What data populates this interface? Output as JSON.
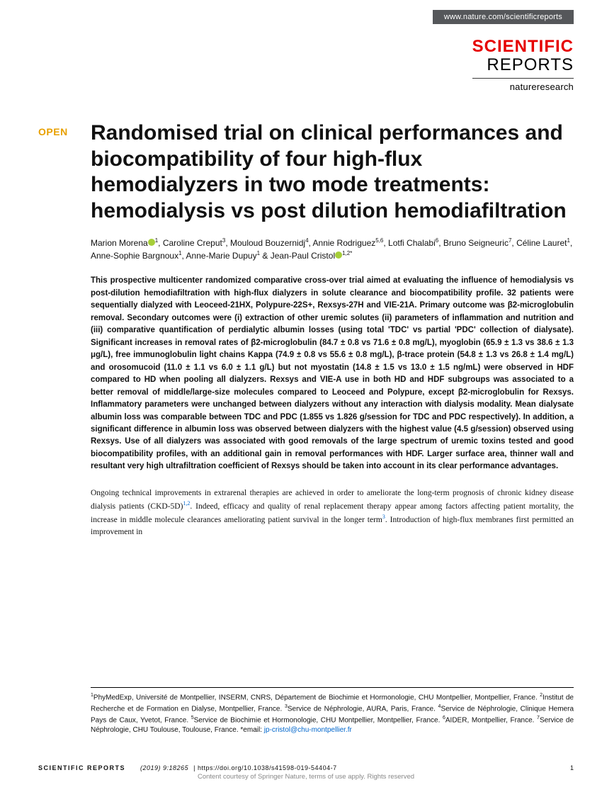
{
  "header": {
    "url": "www.nature.com/scientificreports"
  },
  "brand": {
    "top": "SCIENTIFIC",
    "bottom": "REPORTS",
    "sub": "natureresearch"
  },
  "open_label": "OPEN",
  "title": "Randomised trial on clinical performances and biocompatibility of four high-flux hemodialyzers in two mode treatments: hemodialysis vs post dilution hemodiafiltration",
  "authors_html": "Marion Morena<span class=\"orcid\"></span><sup>1</sup>, Caroline Creput<sup>3</sup>, Mouloud Bouzernidj<sup>4</sup>, Annie Rodriguez<sup>5,6</sup>, Lotfi Chalabi<sup>6</sup>, Bruno Seigneuric<sup>7</sup>, Céline Lauret<sup>1</sup>, Anne-Sophie Bargnoux<sup>1</sup>, Anne-Marie Dupuy<sup>1</sup> & Jean-Paul Cristol<span class=\"orcid\"></span><sup>1,2*</sup>",
  "abstract": "This prospective multicenter randomized comparative cross-over trial aimed at evaluating the influence of hemodialysis vs post-dilution hemodiafiltration with high-flux dialyzers in solute clearance and biocompatibility profile. 32 patients were sequentially dialyzed with Leoceed-21HX, Polypure-22S+, Rexsys-27H and VIE-21A. Primary outcome was β2-microglobulin removal. Secondary outcomes were (i) extraction of other uremic solutes (ii) parameters of inflammation and nutrition and (iii) comparative quantification of perdialytic albumin losses (using total 'TDC' vs partial 'PDC' collection of dialysate). Significant increases in removal rates of β2-microglobulin (84.7 ± 0.8 vs 71.6 ± 0.8 mg/L), myoglobin (65.9 ± 1.3 vs 38.6 ± 1.3 μg/L), free immunoglobulin light chains Kappa (74.9 ± 0.8 vs 55.6 ± 0.8 mg/L), β-trace protein (54.8 ± 1.3 vs 26.8 ± 1.4 mg/L) and orosomucoid (11.0 ± 1.1 vs 6.0 ± 1.1 g/L) but not myostatin (14.8 ± 1.5 vs 13.0 ± 1.5 ng/mL) were observed in HDF compared to HD when pooling all dialyzers. Rexsys and VIE-A use in both HD and HDF subgroups was associated to a better removal of middle/large-size molecules compared to Leoceed and Polypure, except β2-microglobulin for Rexsys. Inflammatory parameters were unchanged between dialyzers without any interaction with dialysis modality. Mean dialysate albumin loss was comparable between TDC and PDC (1.855 vs 1.826 g/session for TDC and PDC respectively). In addition, a significant difference in albumin loss was observed between dialyzers with the highest value (4.5 g/session) observed using Rexsys. Use of all dialyzers was associated with good removals of the large spectrum of uremic toxins tested and good biocompatibility profiles, with an additional gain in removal performances with HDF. Larger surface area, thinner wall and resultant very high ultrafiltration coefficient of Rexsys should be taken into account in its clear performance advantages.",
  "body_html": "Ongoing technical improvements in extrarenal therapies are achieved in order to ameliorate the long-term prognosis of chronic kidney disease dialysis patients (CKD-5D)<sup>1,2</sup>. Indeed, efficacy and quality of renal replacement therapy appear among factors affecting patient mortality, the increase in middle molecule clearances ameliorating patient survival in the longer term<sup>3</sup>. Introduction of high-flux membranes first permitted an improvement in",
  "affiliations_html": "<sup>1</sup>PhyMedExp, Université de Montpellier, INSERM, CNRS, Département de Biochimie et Hormonologie, CHU Montpellier, Montpellier, France. <sup>2</sup>Institut de Recherche et de Formation en Dialyse, Montpellier, France. <sup>3</sup>Service de Néphrologie, AURA, Paris, France. <sup>4</sup>Service de Néphrologie, Clinique Hemera Pays de Caux, Yvetot, France. <sup>5</sup>Service de Biochimie et Hormonologie, CHU Montpellier, Montpellier, France. <sup>6</sup>AIDER, Montpellier, France. <sup>7</sup>Service de Néphrologie, CHU Toulouse, Toulouse, France. *email: <span class=\"email-link\">jp-cristol@chu-montpellier.fr</span>",
  "footer": {
    "brand": "SCIENTIFIC REPORTS",
    "citation": "(2019) 9:18265",
    "doi": "| https://doi.org/10.1038/s41598-019-54404-7",
    "page": "1",
    "copyright": "Content courtesy of Springer Nature, terms of use apply. Rights reserved"
  }
}
